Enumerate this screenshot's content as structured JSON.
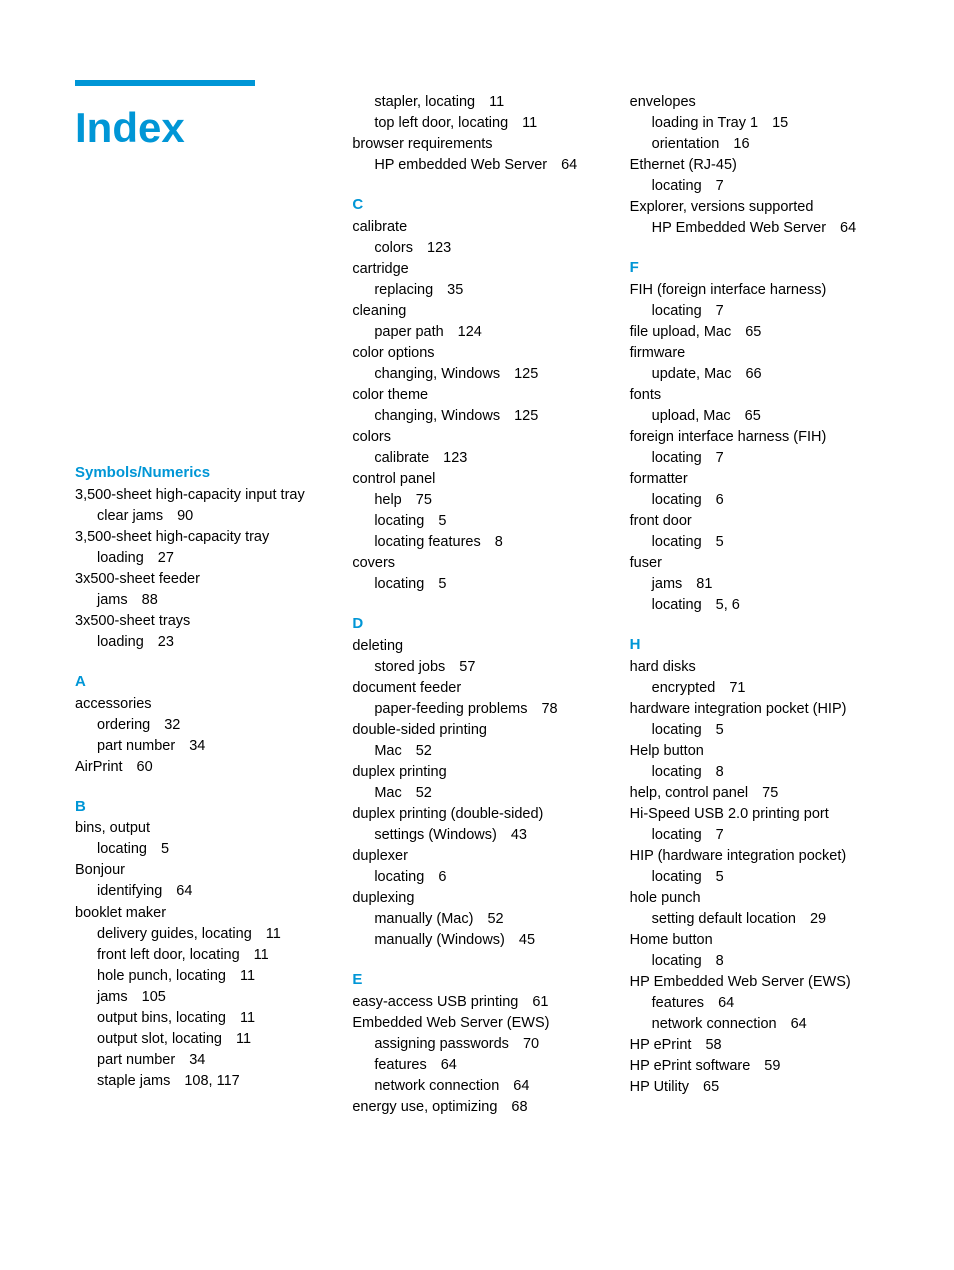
{
  "title": "Index",
  "accent_color": "#0096d6",
  "text_color": "#000000",
  "bg_color": "#ffffff",
  "columns": [
    {
      "sections": [
        {
          "head": "Symbols/Numerics",
          "lines": [
            {
              "t": "3,500-sheet high-capacity input tray",
              "sub": false,
              "p": ""
            },
            {
              "t": "clear jams",
              "sub": true,
              "p": "90"
            },
            {
              "t": "3,500-sheet high-capacity tray",
              "sub": false,
              "p": ""
            },
            {
              "t": "loading",
              "sub": true,
              "p": "27"
            },
            {
              "t": "3x500-sheet feeder",
              "sub": false,
              "p": ""
            },
            {
              "t": "jams",
              "sub": true,
              "p": "88"
            },
            {
              "t": "3x500-sheet trays",
              "sub": false,
              "p": ""
            },
            {
              "t": "loading",
              "sub": true,
              "p": "23"
            }
          ]
        },
        {
          "head": "A",
          "lines": [
            {
              "t": "accessories",
              "sub": false,
              "p": ""
            },
            {
              "t": "ordering",
              "sub": true,
              "p": "32"
            },
            {
              "t": "part number",
              "sub": true,
              "p": "34"
            },
            {
              "t": "AirPrint",
              "sub": false,
              "p": "60"
            }
          ]
        },
        {
          "head": "B",
          "lines": [
            {
              "t": "bins, output",
              "sub": false,
              "p": ""
            },
            {
              "t": "locating",
              "sub": true,
              "p": "5"
            },
            {
              "t": "Bonjour",
              "sub": false,
              "p": ""
            },
            {
              "t": "identifying",
              "sub": true,
              "p": "64"
            },
            {
              "t": "booklet maker",
              "sub": false,
              "p": ""
            },
            {
              "t": "delivery guides, locating",
              "sub": true,
              "p": "11"
            },
            {
              "t": "front left door, locating",
              "sub": true,
              "p": "11"
            },
            {
              "t": "hole punch, locating",
              "sub": true,
              "p": "11"
            },
            {
              "t": "jams",
              "sub": true,
              "p": "105"
            },
            {
              "t": "output bins, locating",
              "sub": true,
              "p": "11"
            },
            {
              "t": "output slot, locating",
              "sub": true,
              "p": "11"
            },
            {
              "t": "part number",
              "sub": true,
              "p": "34"
            },
            {
              "t": "staple jams",
              "sub": true,
              "p": "108, 117"
            }
          ]
        }
      ]
    },
    {
      "sections": [
        {
          "head": "",
          "lines": [
            {
              "t": "stapler, locating",
              "sub": true,
              "p": "11"
            },
            {
              "t": "top left door, locating",
              "sub": true,
              "p": "11"
            },
            {
              "t": "browser requirements",
              "sub": false,
              "p": ""
            },
            {
              "t": "HP embedded Web Server",
              "sub": true,
              "p": "64"
            }
          ]
        },
        {
          "head": "C",
          "lines": [
            {
              "t": "calibrate",
              "sub": false,
              "p": ""
            },
            {
              "t": "colors",
              "sub": true,
              "p": "123"
            },
            {
              "t": "cartridge",
              "sub": false,
              "p": ""
            },
            {
              "t": "replacing",
              "sub": true,
              "p": "35"
            },
            {
              "t": "cleaning",
              "sub": false,
              "p": ""
            },
            {
              "t": "paper path",
              "sub": true,
              "p": "124"
            },
            {
              "t": "color options",
              "sub": false,
              "p": ""
            },
            {
              "t": "changing, Windows",
              "sub": true,
              "p": "125"
            },
            {
              "t": "color theme",
              "sub": false,
              "p": ""
            },
            {
              "t": "changing, Windows",
              "sub": true,
              "p": "125"
            },
            {
              "t": "colors",
              "sub": false,
              "p": ""
            },
            {
              "t": "calibrate",
              "sub": true,
              "p": "123"
            },
            {
              "t": "control panel",
              "sub": false,
              "p": ""
            },
            {
              "t": "help",
              "sub": true,
              "p": "75"
            },
            {
              "t": "locating",
              "sub": true,
              "p": "5"
            },
            {
              "t": "locating features",
              "sub": true,
              "p": "8"
            },
            {
              "t": "covers",
              "sub": false,
              "p": ""
            },
            {
              "t": "locating",
              "sub": true,
              "p": "5"
            }
          ]
        },
        {
          "head": "D",
          "lines": [
            {
              "t": "deleting",
              "sub": false,
              "p": ""
            },
            {
              "t": "stored jobs",
              "sub": true,
              "p": "57"
            },
            {
              "t": "document feeder",
              "sub": false,
              "p": ""
            },
            {
              "t": "paper-feeding problems",
              "sub": true,
              "p": "78"
            },
            {
              "t": "double-sided printing",
              "sub": false,
              "p": ""
            },
            {
              "t": "Mac",
              "sub": true,
              "p": "52"
            },
            {
              "t": "duplex printing",
              "sub": false,
              "p": ""
            },
            {
              "t": "Mac",
              "sub": true,
              "p": "52"
            },
            {
              "t": "duplex printing (double-sided)",
              "sub": false,
              "p": ""
            },
            {
              "t": "settings (Windows)",
              "sub": true,
              "p": "43"
            },
            {
              "t": "duplexer",
              "sub": false,
              "p": ""
            },
            {
              "t": "locating",
              "sub": true,
              "p": "6"
            },
            {
              "t": "duplexing",
              "sub": false,
              "p": ""
            },
            {
              "t": "manually (Mac)",
              "sub": true,
              "p": "52"
            },
            {
              "t": "manually (Windows)",
              "sub": true,
              "p": "45"
            }
          ]
        },
        {
          "head": "E",
          "lines": [
            {
              "t": "easy-access USB printing",
              "sub": false,
              "p": "61"
            },
            {
              "t": "Embedded Web Server (EWS)",
              "sub": false,
              "p": ""
            },
            {
              "t": "assigning passwords",
              "sub": true,
              "p": "70"
            },
            {
              "t": "features",
              "sub": true,
              "p": "64"
            },
            {
              "t": "network connection",
              "sub": true,
              "p": "64"
            },
            {
              "t": "energy use, optimizing",
              "sub": false,
              "p": "68"
            }
          ]
        }
      ]
    },
    {
      "sections": [
        {
          "head": "",
          "lines": [
            {
              "t": "envelopes",
              "sub": false,
              "p": ""
            },
            {
              "t": "loading in Tray 1",
              "sub": true,
              "p": "15"
            },
            {
              "t": "orientation",
              "sub": true,
              "p": "16"
            },
            {
              "t": "Ethernet (RJ-45)",
              "sub": false,
              "p": ""
            },
            {
              "t": "locating",
              "sub": true,
              "p": "7"
            },
            {
              "t": "Explorer, versions supported",
              "sub": false,
              "p": ""
            },
            {
              "t": "HP Embedded Web Server",
              "sub": true,
              "p": "64"
            }
          ]
        },
        {
          "head": "F",
          "lines": [
            {
              "t": "FIH (foreign interface harness)",
              "sub": false,
              "p": ""
            },
            {
              "t": "locating",
              "sub": true,
              "p": "7"
            },
            {
              "t": "file upload, Mac",
              "sub": false,
              "p": "65"
            },
            {
              "t": "firmware",
              "sub": false,
              "p": ""
            },
            {
              "t": "update, Mac",
              "sub": true,
              "p": "66"
            },
            {
              "t": "fonts",
              "sub": false,
              "p": ""
            },
            {
              "t": "upload, Mac",
              "sub": true,
              "p": "65"
            },
            {
              "t": "foreign interface harness (FIH)",
              "sub": false,
              "p": ""
            },
            {
              "t": "locating",
              "sub": true,
              "p": "7"
            },
            {
              "t": "formatter",
              "sub": false,
              "p": ""
            },
            {
              "t": "locating",
              "sub": true,
              "p": "6"
            },
            {
              "t": "front door",
              "sub": false,
              "p": ""
            },
            {
              "t": "locating",
              "sub": true,
              "p": "5"
            },
            {
              "t": "fuser",
              "sub": false,
              "p": ""
            },
            {
              "t": "jams",
              "sub": true,
              "p": "81"
            },
            {
              "t": "locating",
              "sub": true,
              "p": "5, 6"
            }
          ]
        },
        {
          "head": "H",
          "lines": [
            {
              "t": "hard disks",
              "sub": false,
              "p": ""
            },
            {
              "t": "encrypted",
              "sub": true,
              "p": "71"
            },
            {
              "t": "hardware integration pocket (HIP)",
              "sub": false,
              "p": ""
            },
            {
              "t": "locating",
              "sub": true,
              "p": "5"
            },
            {
              "t": "Help button",
              "sub": false,
              "p": ""
            },
            {
              "t": "locating",
              "sub": true,
              "p": "8"
            },
            {
              "t": "help, control panel",
              "sub": false,
              "p": "75"
            },
            {
              "t": "Hi-Speed USB 2.0 printing port",
              "sub": false,
              "p": ""
            },
            {
              "t": "locating",
              "sub": true,
              "p": "7"
            },
            {
              "t": "HIP (hardware integration pocket)",
              "sub": false,
              "p": ""
            },
            {
              "t": "locating",
              "sub": true,
              "p": "5"
            },
            {
              "t": "hole punch",
              "sub": false,
              "p": ""
            },
            {
              "t": "setting default location",
              "sub": true,
              "p": "29"
            },
            {
              "t": "Home button",
              "sub": false,
              "p": ""
            },
            {
              "t": "locating",
              "sub": true,
              "p": "8"
            },
            {
              "t": "HP Embedded Web Server (EWS)",
              "sub": false,
              "p": ""
            },
            {
              "t": "features",
              "sub": true,
              "p": "64"
            },
            {
              "t": "network connection",
              "sub": true,
              "p": "64"
            },
            {
              "t": "HP ePrint",
              "sub": false,
              "p": "58"
            },
            {
              "t": "HP ePrint software",
              "sub": false,
              "p": "59"
            },
            {
              "t": "HP Utility",
              "sub": false,
              "p": "65"
            }
          ]
        }
      ]
    }
  ]
}
